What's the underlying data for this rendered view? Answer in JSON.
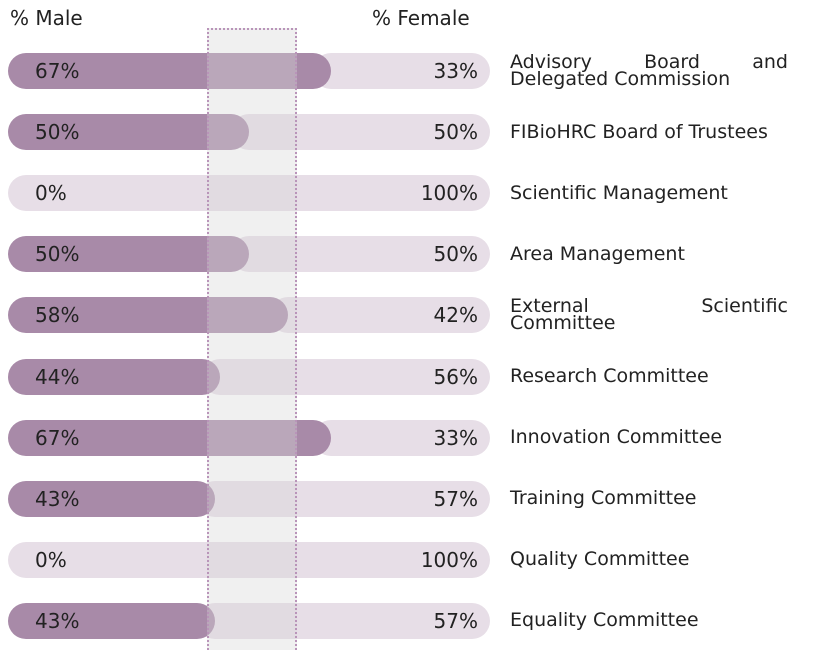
{
  "chart_data": {
    "type": "bar",
    "orientation": "horizontal",
    "stacked": true,
    "header_left": "% Male",
    "header_right": "% Female",
    "categories": [
      "Advisory Board and Delegated Commission",
      "FIBioHRC Board of Trustees",
      "Scientific Management",
      "Area Management",
      "External Scientific Committee",
      "Research Committee",
      "Innovation Committee",
      "Training Committee",
      "Quality Committee",
      "Equality Committee"
    ],
    "series": [
      {
        "name": "% Male",
        "color": "#a88aa8",
        "values": [
          67,
          50,
          0,
          50,
          58,
          44,
          67,
          43,
          0,
          43
        ],
        "value_labels": [
          "67%",
          "50%",
          "0%",
          "50%",
          "58%",
          "44%",
          "67%",
          "43%",
          "0%",
          "43%"
        ]
      },
      {
        "name": "% Female",
        "color": "#e7dee7",
        "values": [
          33,
          50,
          100,
          50,
          42,
          56,
          33,
          57,
          100,
          57
        ],
        "value_labels": [
          "33%",
          "50%",
          "100%",
          "50%",
          "42%",
          "56%",
          "33%",
          "57%",
          "100%",
          "57%"
        ]
      }
    ]
  }
}
